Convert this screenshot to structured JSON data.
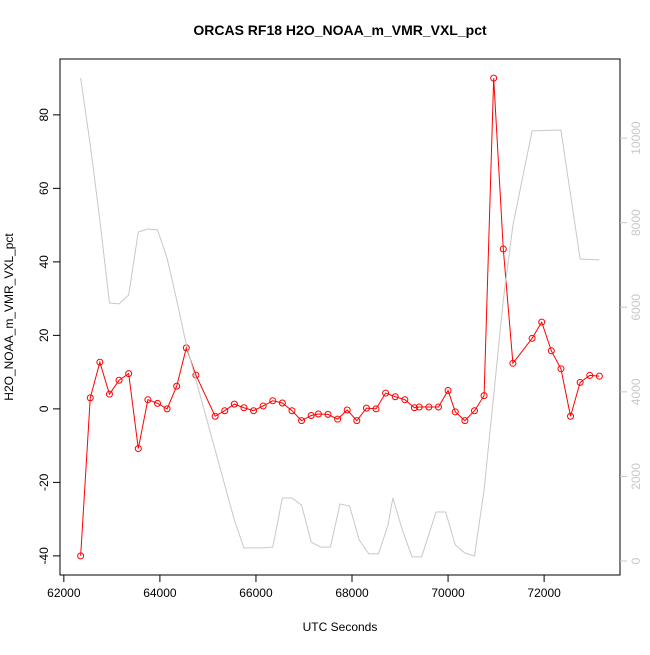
{
  "chart_data": {
    "type": "line",
    "title": "ORCAS RF18 H2O_NOAA_m_VMR_VXL_pct",
    "x_label": "UTC Seconds",
    "y_label": "H2O_NOAA_m_VMR_VXL_pct",
    "xlim": [
      61920,
      73580
    ],
    "xticks": [
      62000,
      64000,
      66000,
      68000,
      70000,
      72000
    ],
    "ylim": [
      -45.2,
      95.2
    ],
    "yticks": [
      -40,
      -20,
      0,
      20,
      40,
      60,
      80
    ],
    "y2lim": [
      -330,
      11870
    ],
    "y2ticks": [
      0,
      2000,
      4000,
      6000,
      8000,
      10000
    ],
    "series": [
      {
        "color": "#ff0000",
        "markers": true,
        "x": [
          62350,
          62550,
          62750,
          62950,
          63150,
          63350,
          63550,
          63750,
          63950,
          64150,
          64350,
          64550,
          64750,
          65150,
          65350,
          65550,
          65750,
          65950,
          66150,
          66350,
          66550,
          66750,
          66950,
          67150,
          67300,
          67500,
          67700,
          67900,
          68100,
          68300,
          68500,
          68700,
          68900,
          69100,
          69300,
          69400,
          69600,
          69800,
          70000,
          70150,
          70350,
          70550,
          70750,
          70950,
          71150,
          71350,
          71750,
          71950,
          72150,
          72350,
          72550,
          72750,
          72950,
          73150
        ],
        "values": [
          -40,
          3,
          12.7,
          4,
          7.8,
          9.6,
          -10.8,
          2.5,
          1.5,
          0,
          6.2,
          16.6,
          9.2,
          -2,
          -0.5,
          1.3,
          0.3,
          -0.5,
          0.8,
          2.2,
          1.6,
          -0.5,
          -3.2,
          -1.8,
          -1.4,
          -1.5,
          -2.8,
          -0.3,
          -3.2,
          0.2,
          0,
          4.3,
          3.3,
          2.5,
          0.3,
          0.5,
          0.5,
          0.5,
          5,
          -0.8,
          -3.2,
          -0.5,
          3.6,
          90,
          43.5,
          12.4,
          19.2,
          23.6,
          15.8,
          10.9,
          -2,
          7.2,
          9.1,
          8.9
        ]
      },
      {
        "color": "#c8c8c8",
        "axis": "y2",
        "markers": false,
        "x": [
          62350,
          62550,
          62750,
          62950,
          63150,
          63350,
          63550,
          63750,
          63950,
          64150,
          64350,
          64550,
          65550,
          65750,
          66150,
          66350,
          66550,
          66750,
          66950,
          67150,
          67350,
          67550,
          67750,
          67950,
          68150,
          68350,
          68550,
          68750,
          68850,
          69050,
          69250,
          69450,
          69750,
          69950,
          70150,
          70350,
          70550,
          70750,
          70950,
          71150,
          71350,
          71750,
          72350,
          72750,
          73150
        ],
        "values": [
          11420,
          9840,
          8060,
          6100,
          6080,
          6290,
          7780,
          7850,
          7830,
          7160,
          6170,
          5110,
          970,
          310,
          310,
          330,
          1490,
          1490,
          1320,
          450,
          330,
          330,
          1350,
          1300,
          500,
          170,
          170,
          850,
          1490,
          730,
          100,
          100,
          1160,
          1160,
          380,
          190,
          120,
          1680,
          3920,
          6170,
          7940,
          10170,
          10190,
          7140,
          7120
        ]
      }
    ]
  }
}
